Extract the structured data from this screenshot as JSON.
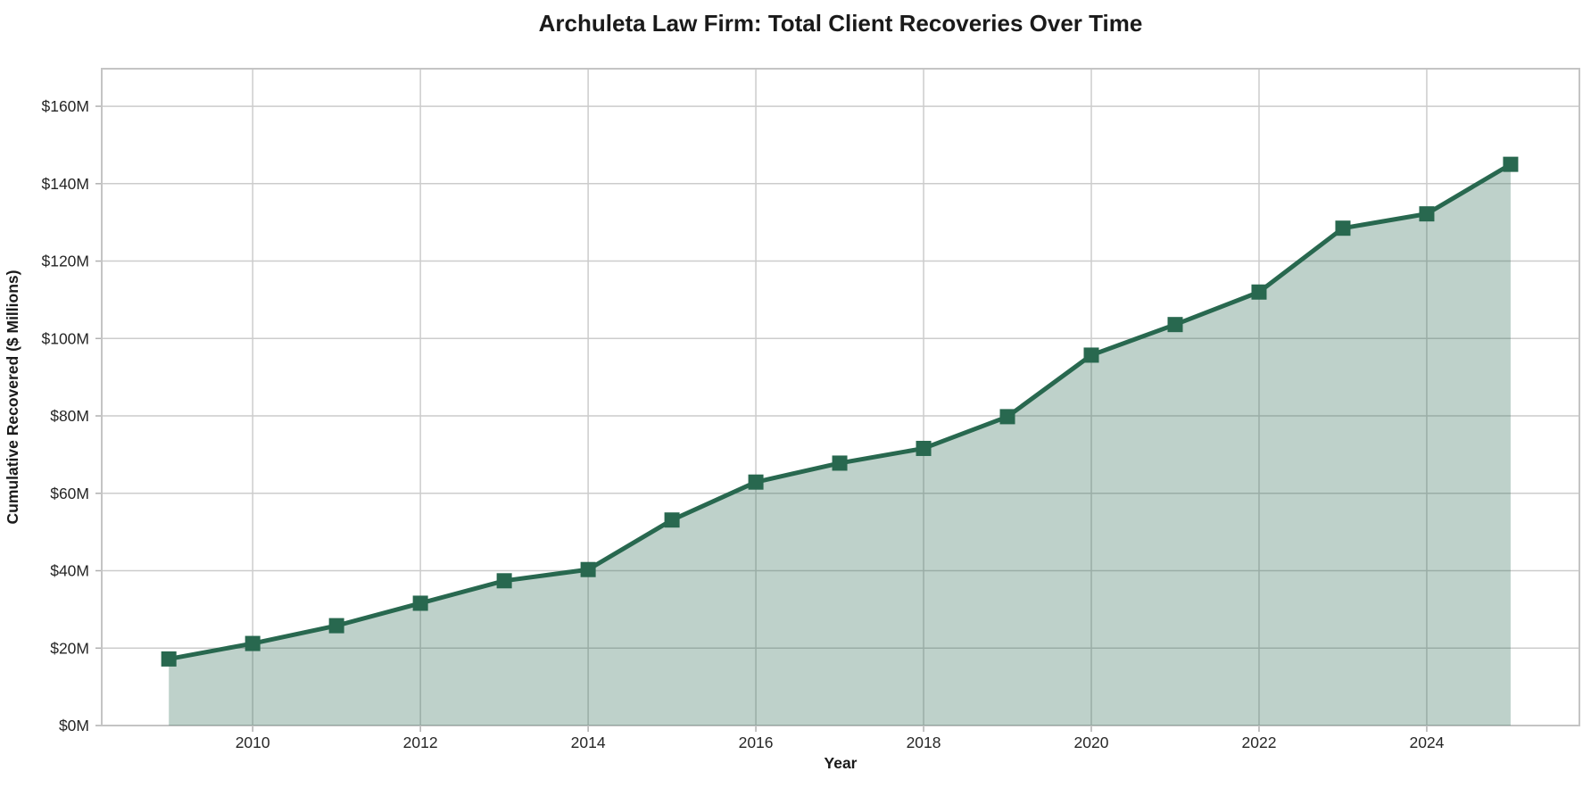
{
  "title": "Archuleta Law Firm: Total Client Recoveries Over Time",
  "chart_data": {
    "type": "area",
    "title": "Archuleta Law Firm: Total Client Recoveries Over Time",
    "xlabel": "Year",
    "ylabel": "Cumulative Recovered ($ Millions)",
    "x": [
      2009,
      2010,
      2011,
      2012,
      2013,
      2014,
      2015,
      2016,
      2017,
      2018,
      2019,
      2020,
      2021,
      2022,
      2023,
      2024,
      2025
    ],
    "values": [
      17.2,
      21.2,
      25.8,
      31.6,
      37.4,
      40.3,
      53.1,
      62.9,
      67.8,
      71.6,
      79.8,
      95.7,
      103.6,
      112.0,
      128.5,
      132.2,
      145.0
    ],
    "series_name": "Cumulative Recovered",
    "xlim": [
      2008.2,
      2025.82
    ],
    "ylim": [
      0,
      169.7
    ],
    "xticks": [
      2010,
      2012,
      2014,
      2016,
      2018,
      2020,
      2022,
      2024
    ],
    "xtick_labels": [
      "2010",
      "2012",
      "2014",
      "2016",
      "2018",
      "2020",
      "2022",
      "2024"
    ],
    "yticks": [
      0,
      20,
      40,
      60,
      80,
      100,
      120,
      140,
      160
    ],
    "ytick_labels": [
      "$0M",
      "$20M",
      "$40M",
      "$60M",
      "$80M",
      "$100M",
      "$120M",
      "$140M",
      "$160M"
    ],
    "grid": true,
    "legend": "none",
    "marker": "square",
    "colors": {
      "line": "#28684f",
      "fill": "rgba(40,104,79,0.30)",
      "grid": "#cccccc",
      "spine": "#c4c4c4",
      "tick": "#b0b0b0",
      "tick_label": "#262626",
      "title": "#1a1a1a"
    }
  }
}
